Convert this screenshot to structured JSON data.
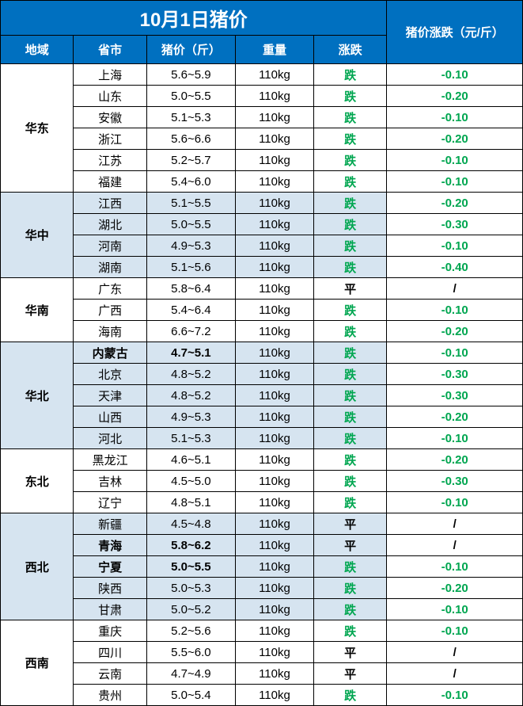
{
  "title": "10月1日猪价",
  "headers": {
    "region": "地域",
    "province": "省市",
    "price": "猪价（斤）",
    "weight": "重量",
    "trend": "涨跌",
    "change": "猪价涨跌（元/斤）"
  },
  "colors": {
    "header_bg": "#0070c0",
    "header_fg": "#ffffff",
    "alt_row_bg": "#d6e4f0",
    "white_bg": "#ffffff",
    "down_color": "#00a650",
    "flat_color": "#000000",
    "border": "#000000"
  },
  "col_widths": [
    "14%",
    "14%",
    "17%",
    "15%",
    "14%",
    "26%"
  ],
  "trend_labels": {
    "down": "跌",
    "flat": "平"
  },
  "regions": [
    {
      "name": "华东",
      "alt": false,
      "rows": [
        {
          "province": "上海",
          "price": "5.6~5.9",
          "weight": "110kg",
          "trend": "down",
          "change": "-0.10",
          "bold": false
        },
        {
          "province": "山东",
          "price": "5.0~5.5",
          "weight": "110kg",
          "trend": "down",
          "change": "-0.20",
          "bold": false
        },
        {
          "province": "安徽",
          "price": "5.1~5.3",
          "weight": "110kg",
          "trend": "down",
          "change": "-0.10",
          "bold": false
        },
        {
          "province": "浙江",
          "price": "5.6~6.6",
          "weight": "110kg",
          "trend": "down",
          "change": "-0.20",
          "bold": false
        },
        {
          "province": "江苏",
          "price": "5.2~5.7",
          "weight": "110kg",
          "trend": "down",
          "change": "-0.10",
          "bold": false
        },
        {
          "province": "福建",
          "price": "5.4~6.0",
          "weight": "110kg",
          "trend": "down",
          "change": "-0.10",
          "bold": false
        }
      ]
    },
    {
      "name": "华中",
      "alt": true,
      "rows": [
        {
          "province": "江西",
          "price": "5.1~5.5",
          "weight": "110kg",
          "trend": "down",
          "change": "-0.20",
          "bold": false
        },
        {
          "province": "湖北",
          "price": "5.0~5.5",
          "weight": "110kg",
          "trend": "down",
          "change": "-0.30",
          "bold": false
        },
        {
          "province": "河南",
          "price": "4.9~5.3",
          "weight": "110kg",
          "trend": "down",
          "change": "-0.10",
          "bold": false
        },
        {
          "province": "湖南",
          "price": "5.1~5.6",
          "weight": "110kg",
          "trend": "down",
          "change": "-0.40",
          "bold": false
        }
      ]
    },
    {
      "name": "华南",
      "alt": false,
      "rows": [
        {
          "province": "广东",
          "price": "5.8~6.4",
          "weight": "110kg",
          "trend": "flat",
          "change": "/",
          "bold": false
        },
        {
          "province": "广西",
          "price": "5.4~6.4",
          "weight": "110kg",
          "trend": "down",
          "change": "-0.10",
          "bold": false
        },
        {
          "province": "海南",
          "price": "6.6~7.2",
          "weight": "110kg",
          "trend": "down",
          "change": "-0.20",
          "bold": false
        }
      ]
    },
    {
      "name": "华北",
      "alt": true,
      "rows": [
        {
          "province": "内蒙古",
          "price": "4.7~5.1",
          "weight": "110kg",
          "trend": "down",
          "change": "-0.10",
          "bold": true
        },
        {
          "province": "北京",
          "price": "4.8~5.2",
          "weight": "110kg",
          "trend": "down",
          "change": "-0.30",
          "bold": false
        },
        {
          "province": "天津",
          "price": "4.8~5.2",
          "weight": "110kg",
          "trend": "down",
          "change": "-0.30",
          "bold": false
        },
        {
          "province": "山西",
          "price": "4.9~5.3",
          "weight": "110kg",
          "trend": "down",
          "change": "-0.20",
          "bold": false
        },
        {
          "province": "河北",
          "price": "5.1~5.3",
          "weight": "110kg",
          "trend": "down",
          "change": "-0.10",
          "bold": false
        }
      ]
    },
    {
      "name": "东北",
      "alt": false,
      "rows": [
        {
          "province": "黑龙江",
          "price": "4.6~5.1",
          "weight": "110kg",
          "trend": "down",
          "change": "-0.20",
          "bold": false
        },
        {
          "province": "吉林",
          "price": "4.5~5.0",
          "weight": "110kg",
          "trend": "down",
          "change": "-0.30",
          "bold": false
        },
        {
          "province": "辽宁",
          "price": "4.8~5.1",
          "weight": "110kg",
          "trend": "down",
          "change": "-0.10",
          "bold": false
        }
      ]
    },
    {
      "name": "西北",
      "alt": true,
      "rows": [
        {
          "province": "新疆",
          "price": "4.5~4.8",
          "weight": "110kg",
          "trend": "flat",
          "change": "/",
          "bold": false
        },
        {
          "province": "青海",
          "price": "5.8~6.2",
          "weight": "110kg",
          "trend": "flat",
          "change": "/",
          "bold": true
        },
        {
          "province": "宁夏",
          "price": "5.0~5.5",
          "weight": "110kg",
          "trend": "down",
          "change": "-0.10",
          "bold": true
        },
        {
          "province": "陕西",
          "price": "5.0~5.3",
          "weight": "110kg",
          "trend": "down",
          "change": "-0.20",
          "bold": false
        },
        {
          "province": "甘肃",
          "price": "5.0~5.2",
          "weight": "110kg",
          "trend": "down",
          "change": "-0.10",
          "bold": false
        }
      ]
    },
    {
      "name": "西南",
      "alt": false,
      "rows": [
        {
          "province": "重庆",
          "price": "5.2~5.6",
          "weight": "110kg",
          "trend": "down",
          "change": "-0.10",
          "bold": false
        },
        {
          "province": "四川",
          "price": "5.5~6.0",
          "weight": "110kg",
          "trend": "flat",
          "change": "/",
          "bold": false
        },
        {
          "province": "云南",
          "price": "4.7~4.9",
          "weight": "110kg",
          "trend": "flat",
          "change": "/",
          "bold": false
        },
        {
          "province": "贵州",
          "price": "5.0~5.4",
          "weight": "110kg",
          "trend": "down",
          "change": "-0.10",
          "bold": false
        }
      ]
    }
  ]
}
